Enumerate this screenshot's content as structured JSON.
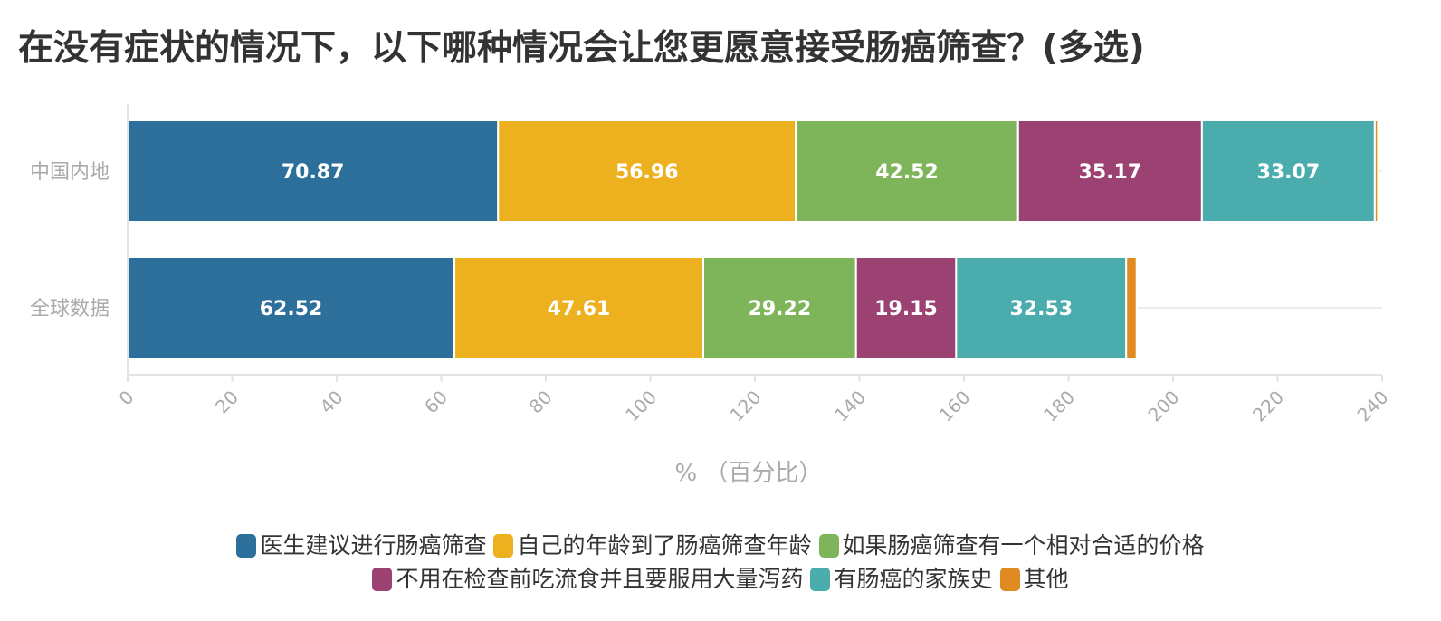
{
  "chart_data": {
    "type": "bar",
    "orientation": "horizontal",
    "stacked": true,
    "title": "在没有症状的情况下，以下哪种情况会让您更愿意接受肠癌筛查？(多选)",
    "xlabel": "%  （百分比）",
    "ylabel": "",
    "xlim": [
      0,
      240
    ],
    "xticks": [
      0,
      20,
      40,
      60,
      80,
      100,
      120,
      140,
      160,
      180,
      200,
      220,
      240
    ],
    "grid": true,
    "legend": "bottom-center",
    "categories": [
      "中国内地",
      "全球数据"
    ],
    "series": [
      {
        "name": "医生建议进行肠癌筛查",
        "color": "#2d6f9b",
        "values": [
          70.87,
          62.52
        ]
      },
      {
        "name": "自己的年龄到了肠癌筛查年龄",
        "color": "#edb120",
        "values": [
          56.96,
          47.61
        ]
      },
      {
        "name": "如果肠癌筛查有一个相对合适的价格",
        "color": "#7fb55a",
        "values": [
          42.52,
          29.22
        ]
      },
      {
        "name": "不用在检查前吃流食并且要服用大量泻药",
        "color": "#9c4273",
        "values": [
          35.17,
          19.15
        ]
      },
      {
        "name": "有肠癌的家族史",
        "color": "#4aacac",
        "values": [
          33.07,
          32.53
        ]
      },
      {
        "name": "其他",
        "color": "#e08a22",
        "values": [
          0.6,
          2.0
        ]
      }
    ]
  },
  "legend_rows": [
    [
      0,
      1,
      2
    ],
    [
      3,
      4,
      5
    ]
  ]
}
